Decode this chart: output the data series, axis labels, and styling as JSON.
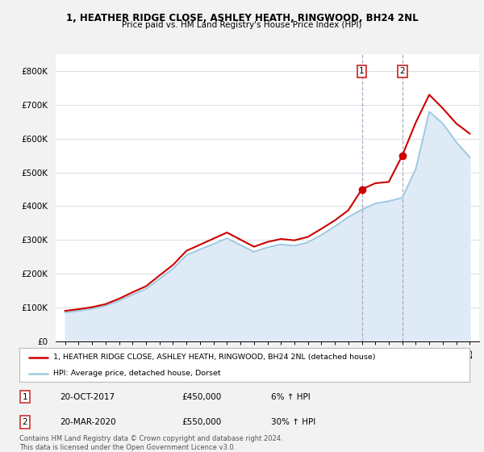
{
  "title": "1, HEATHER RIDGE CLOSE, ASHLEY HEATH, RINGWOOD, BH24 2NL",
  "subtitle": "Price paid vs. HM Land Registry's House Price Index (HPI)",
  "legend_line1": "1, HEATHER RIDGE CLOSE, ASHLEY HEATH, RINGWOOD, BH24 2NL (detached house)",
  "legend_line2": "HPI: Average price, detached house, Dorset",
  "footer": "Contains HM Land Registry data © Crown copyright and database right 2024.\nThis data is licensed under the Open Government Licence v3.0.",
  "transaction1_date": "20-OCT-2017",
  "transaction1_price": "£450,000",
  "transaction1_hpi": "6% ↑ HPI",
  "transaction2_date": "20-MAR-2020",
  "transaction2_price": "£550,000",
  "transaction2_hpi": "30% ↑ HPI",
  "hpi_color": "#9ecae1",
  "hpi_fill_color": "#deebf7",
  "price_color": "#cc0000",
  "vline_color": "#9999bb",
  "ylim": [
    0,
    850000
  ],
  "yticks": [
    0,
    100000,
    200000,
    300000,
    400000,
    500000,
    600000,
    700000,
    800000
  ],
  "ytick_labels": [
    "£0",
    "£100K",
    "£200K",
    "£300K",
    "£400K",
    "£500K",
    "£600K",
    "£700K",
    "£800K"
  ],
  "hpi_years": [
    1995,
    1996,
    1997,
    1998,
    1999,
    2000,
    2001,
    2002,
    2003,
    2004,
    2005,
    2006,
    2007,
    2008,
    2009,
    2010,
    2011,
    2012,
    2013,
    2014,
    2015,
    2016,
    2017,
    2018,
    2019,
    2020,
    2021,
    2022,
    2023,
    2024,
    2025
  ],
  "hpi_values": [
    85000,
    90000,
    96000,
    105000,
    120000,
    138000,
    155000,
    185000,
    215000,
    255000,
    272000,
    288000,
    305000,
    285000,
    265000,
    278000,
    287000,
    283000,
    293000,
    315000,
    340000,
    368000,
    390000,
    408000,
    415000,
    425000,
    510000,
    680000,
    645000,
    590000,
    545000
  ],
  "price_years": [
    1995,
    1996,
    1997,
    1998,
    1999,
    2000,
    2001,
    2002,
    2003,
    2004,
    2005,
    2006,
    2007,
    2008,
    2009,
    2010,
    2011,
    2012,
    2013,
    2014,
    2015,
    2016,
    2017,
    2018,
    2019,
    2020,
    2021,
    2022,
    2023,
    2024,
    2025
  ],
  "price_values": [
    90000,
    95000,
    101000,
    110000,
    126000,
    145000,
    163000,
    195000,
    226000,
    268000,
    286000,
    304000,
    322000,
    301000,
    280000,
    294000,
    303000,
    299000,
    309000,
    333000,
    358000,
    388000,
    450000,
    468000,
    472000,
    550000,
    648000,
    730000,
    690000,
    645000,
    615000
  ],
  "sale1_year": 2017,
  "sale1_price": 450000,
  "sale2_year": 2020,
  "sale2_price": 550000,
  "bg_color": "#f2f2f2",
  "plot_bg": "#ffffff",
  "grid_color": "#dddddd",
  "box_edge_color": "#cc3333"
}
